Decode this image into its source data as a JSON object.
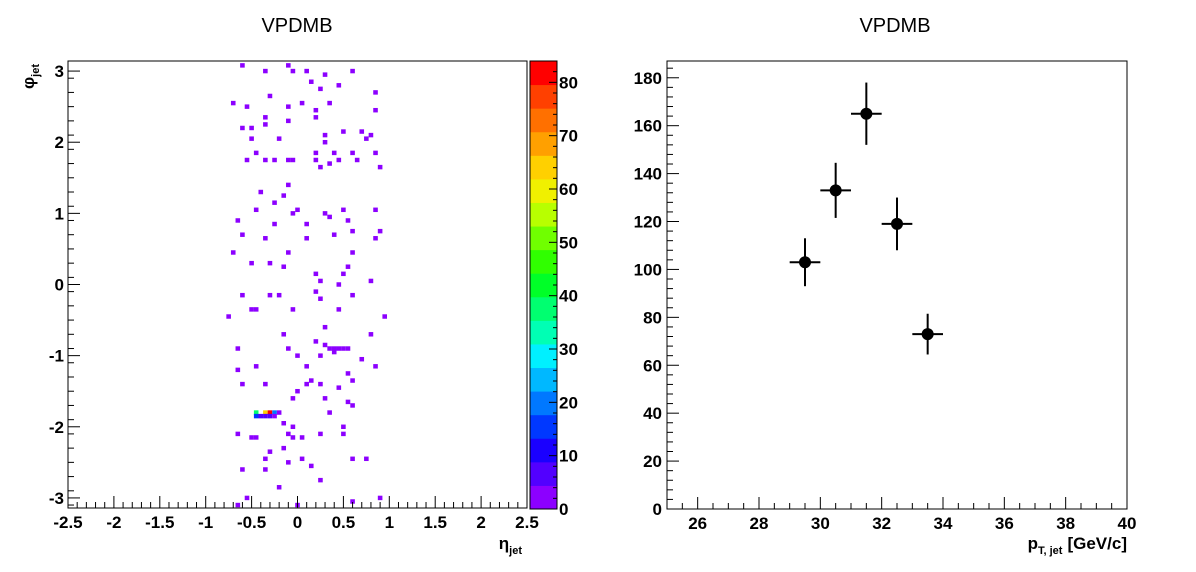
{
  "chart_data": [
    {
      "type": "heatmap",
      "title": "VPDMB",
      "xlabel": "η",
      "xlabel_sub": "jet",
      "ylabel": "φ",
      "ylabel_sub": "jet",
      "xlim": [
        -2.5,
        2.5
      ],
      "ylim": [
        -3.1416,
        3.1416
      ],
      "grid": false,
      "xticks": [
        "-2.5",
        "-2",
        "-1.5",
        "-1",
        "-0.5",
        "0",
        "0.5",
        "1",
        "1.5",
        "2",
        "2.5"
      ],
      "yticks": [
        "-3",
        "-2",
        "-1",
        "0",
        "1",
        "2",
        "3"
      ],
      "colorbar": {
        "range": [
          0,
          84
        ],
        "ticks": [
          "0",
          "10",
          "20",
          "30",
          "40",
          "50",
          "60",
          "70",
          "80"
        ],
        "palette": [
          "#8c00ff",
          "#5200ff",
          "#1a00ff",
          "#0038ff",
          "#0078ff",
          "#00b8ff",
          "#00f0ff",
          "#00ffb4",
          "#00ff70",
          "#00ff28",
          "#30ff00",
          "#70ff00",
          "#b8ff00",
          "#f0f000",
          "#ffd000",
          "#ffa000",
          "#ff7000",
          "#ff4000",
          "#ff0000"
        ]
      },
      "cells": [
        {
          "eta": -0.6,
          "phi": 3.08,
          "z": 1
        },
        {
          "eta": -0.35,
          "phi": 3.0,
          "z": 1
        },
        {
          "eta": -0.1,
          "phi": 3.08,
          "z": 1
        },
        {
          "eta": -0.05,
          "phi": 3.0,
          "z": 1
        },
        {
          "eta": 0.1,
          "phi": 3.0,
          "z": 1
        },
        {
          "eta": 0.3,
          "phi": 2.95,
          "z": 1
        },
        {
          "eta": 0.6,
          "phi": 3.0,
          "z": 1
        },
        {
          "eta": 0.45,
          "phi": 2.8,
          "z": 1
        },
        {
          "eta": 0.15,
          "phi": 2.85,
          "z": 1
        },
        {
          "eta": 0.25,
          "phi": 2.75,
          "z": 1
        },
        {
          "eta": -0.3,
          "phi": 2.65,
          "z": 1
        },
        {
          "eta": 0.85,
          "phi": 2.7,
          "z": 1
        },
        {
          "eta": -0.1,
          "phi": 2.5,
          "z": 1
        },
        {
          "eta": 0.05,
          "phi": 2.55,
          "z": 1
        },
        {
          "eta": 0.35,
          "phi": 2.55,
          "z": 1
        },
        {
          "eta": -0.7,
          "phi": 2.55,
          "z": 1
        },
        {
          "eta": -0.55,
          "phi": 2.5,
          "z": 1
        },
        {
          "eta": 0.2,
          "phi": 2.45,
          "z": 1
        },
        {
          "eta": 0.85,
          "phi": 2.45,
          "z": 1
        },
        {
          "eta": 0.2,
          "phi": 2.35,
          "z": 1
        },
        {
          "eta": -0.35,
          "phi": 2.35,
          "z": 1
        },
        {
          "eta": -0.1,
          "phi": 2.3,
          "z": 1
        },
        {
          "eta": -0.5,
          "phi": 2.2,
          "z": 1
        },
        {
          "eta": -0.35,
          "phi": 2.25,
          "z": 1
        },
        {
          "eta": -0.6,
          "phi": 2.2,
          "z": 1
        },
        {
          "eta": 0.3,
          "phi": 2.1,
          "z": 1
        },
        {
          "eta": 0.5,
          "phi": 2.15,
          "z": 1
        },
        {
          "eta": 0.7,
          "phi": 2.15,
          "z": 1
        },
        {
          "eta": 0.8,
          "phi": 2.1,
          "z": 1
        },
        {
          "eta": -0.5,
          "phi": 2.05,
          "z": 1
        },
        {
          "eta": -0.2,
          "phi": 2.05,
          "z": 1
        },
        {
          "eta": 0.3,
          "phi": 2.0,
          "z": 1
        },
        {
          "eta": 0.75,
          "phi": 2.05,
          "z": 1
        },
        {
          "eta": -0.45,
          "phi": 1.85,
          "z": 1
        },
        {
          "eta": 0.2,
          "phi": 1.85,
          "z": 1
        },
        {
          "eta": 0.4,
          "phi": 1.85,
          "z": 1
        },
        {
          "eta": 0.6,
          "phi": 1.85,
          "z": 1
        },
        {
          "eta": 0.85,
          "phi": 1.85,
          "z": 1
        },
        {
          "eta": -0.35,
          "phi": 1.75,
          "z": 1
        },
        {
          "eta": -0.25,
          "phi": 1.75,
          "z": 1
        },
        {
          "eta": -0.1,
          "phi": 1.75,
          "z": 1
        },
        {
          "eta": -0.05,
          "phi": 1.75,
          "z": 1
        },
        {
          "eta": 0.2,
          "phi": 1.75,
          "z": 1
        },
        {
          "eta": 0.35,
          "phi": 1.7,
          "z": 1
        },
        {
          "eta": 0.45,
          "phi": 1.75,
          "z": 1
        },
        {
          "eta": 0.65,
          "phi": 1.75,
          "z": 1
        },
        {
          "eta": -0.55,
          "phi": 1.75,
          "z": 1
        },
        {
          "eta": 0.25,
          "phi": 1.65,
          "z": 1
        },
        {
          "eta": 0.9,
          "phi": 1.65,
          "z": 1
        },
        {
          "eta": -0.1,
          "phi": 1.4,
          "z": 1
        },
        {
          "eta": -0.15,
          "phi": 1.25,
          "z": 1
        },
        {
          "eta": -0.4,
          "phi": 1.3,
          "z": 1
        },
        {
          "eta": -0.25,
          "phi": 1.15,
          "z": 1
        },
        {
          "eta": 0.0,
          "phi": 1.05,
          "z": 1
        },
        {
          "eta": -0.45,
          "phi": 1.05,
          "z": 1
        },
        {
          "eta": 0.5,
          "phi": 1.05,
          "z": 1
        },
        {
          "eta": 0.85,
          "phi": 1.05,
          "z": 1
        },
        {
          "eta": -0.05,
          "phi": 1.0,
          "z": 1
        },
        {
          "eta": 0.3,
          "phi": 1.0,
          "z": 1
        },
        {
          "eta": 0.35,
          "phi": 0.95,
          "z": 1
        },
        {
          "eta": 0.55,
          "phi": 0.9,
          "z": 1
        },
        {
          "eta": -0.65,
          "phi": 0.9,
          "z": 1
        },
        {
          "eta": 0.1,
          "phi": 0.85,
          "z": 1
        },
        {
          "eta": -0.25,
          "phi": 0.85,
          "z": 1
        },
        {
          "eta": -0.6,
          "phi": 0.7,
          "z": 1
        },
        {
          "eta": 0.4,
          "phi": 0.7,
          "z": 1
        },
        {
          "eta": 0.6,
          "phi": 0.75,
          "z": 1
        },
        {
          "eta": 0.9,
          "phi": 0.75,
          "z": 1
        },
        {
          "eta": 0.85,
          "phi": 0.65,
          "z": 1
        },
        {
          "eta": 0.1,
          "phi": 0.65,
          "z": 1
        },
        {
          "eta": -0.35,
          "phi": 0.65,
          "z": 1
        },
        {
          "eta": -0.7,
          "phi": 0.45,
          "z": 1
        },
        {
          "eta": 0.6,
          "phi": 0.45,
          "z": 1
        },
        {
          "eta": -0.1,
          "phi": 0.45,
          "z": 1
        },
        {
          "eta": -0.5,
          "phi": 0.3,
          "z": 1
        },
        {
          "eta": -0.3,
          "phi": 0.3,
          "z": 1
        },
        {
          "eta": -0.15,
          "phi": 0.25,
          "z": 1
        },
        {
          "eta": 0.55,
          "phi": 0.25,
          "z": 1
        },
        {
          "eta": 0.2,
          "phi": 0.15,
          "z": 1
        },
        {
          "eta": 0.5,
          "phi": 0.15,
          "z": 1
        },
        {
          "eta": 0.8,
          "phi": 0.05,
          "z": 1
        },
        {
          "eta": 0.25,
          "phi": 0.05,
          "z": 1
        },
        {
          "eta": 0.45,
          "phi": 0.0,
          "z": 1
        },
        {
          "eta": -0.6,
          "phi": -0.15,
          "z": 1
        },
        {
          "eta": -0.3,
          "phi": -0.15,
          "z": 1
        },
        {
          "eta": -0.2,
          "phi": -0.15,
          "z": 1
        },
        {
          "eta": 0.2,
          "phi": -0.1,
          "z": 1
        },
        {
          "eta": 0.25,
          "phi": -0.2,
          "z": 1
        },
        {
          "eta": 0.6,
          "phi": -0.15,
          "z": 1
        },
        {
          "eta": -0.5,
          "phi": -0.35,
          "z": 1
        },
        {
          "eta": -0.45,
          "phi": -0.35,
          "z": 1
        },
        {
          "eta": 0.45,
          "phi": -0.35,
          "z": 1
        },
        {
          "eta": -0.05,
          "phi": -0.35,
          "z": 1
        },
        {
          "eta": -0.75,
          "phi": -0.45,
          "z": 1
        },
        {
          "eta": 0.95,
          "phi": -0.45,
          "z": 1
        },
        {
          "eta": 0.3,
          "phi": -0.6,
          "z": 1
        },
        {
          "eta": -0.15,
          "phi": -0.7,
          "z": 1
        },
        {
          "eta": 0.8,
          "phi": -0.7,
          "z": 1
        },
        {
          "eta": 0.2,
          "phi": -0.8,
          "z": 1
        },
        {
          "eta": 0.3,
          "phi": -0.85,
          "z": 1
        },
        {
          "eta": 0.35,
          "phi": -0.9,
          "z": 1
        },
        {
          "eta": 0.4,
          "phi": -0.9,
          "z": 1
        },
        {
          "eta": 0.45,
          "phi": -0.9,
          "z": 1
        },
        {
          "eta": 0.5,
          "phi": -0.9,
          "z": 1
        },
        {
          "eta": 0.55,
          "phi": -0.9,
          "z": 1
        },
        {
          "eta": 0.4,
          "phi": -0.95,
          "z": 1
        },
        {
          "eta": -0.1,
          "phi": -0.9,
          "z": 1
        },
        {
          "eta": -0.65,
          "phi": -0.9,
          "z": 1
        },
        {
          "eta": 0.0,
          "phi": -1.0,
          "z": 1
        },
        {
          "eta": 0.25,
          "phi": -1.0,
          "z": 1
        },
        {
          "eta": 0.7,
          "phi": -1.05,
          "z": 1
        },
        {
          "eta": -0.45,
          "phi": -1.15,
          "z": 1
        },
        {
          "eta": 0.1,
          "phi": -1.15,
          "z": 1
        },
        {
          "eta": 0.85,
          "phi": -1.15,
          "z": 1
        },
        {
          "eta": -0.65,
          "phi": -1.2,
          "z": 1
        },
        {
          "eta": 0.55,
          "phi": -1.25,
          "z": 1
        },
        {
          "eta": -0.6,
          "phi": -1.4,
          "z": 1
        },
        {
          "eta": -0.35,
          "phi": -1.4,
          "z": 1
        },
        {
          "eta": 0.1,
          "phi": -1.4,
          "z": 1
        },
        {
          "eta": 0.15,
          "phi": -1.35,
          "z": 1
        },
        {
          "eta": 0.25,
          "phi": -1.4,
          "z": 1
        },
        {
          "eta": 0.6,
          "phi": -1.35,
          "z": 1
        },
        {
          "eta": 0.45,
          "phi": -1.45,
          "z": 1
        },
        {
          "eta": 0.0,
          "phi": -1.5,
          "z": 1
        },
        {
          "eta": -0.05,
          "phi": -1.6,
          "z": 1
        },
        {
          "eta": 0.3,
          "phi": -1.6,
          "z": 1
        },
        {
          "eta": 0.55,
          "phi": -1.65,
          "z": 1
        },
        {
          "eta": -0.45,
          "phi": -1.8,
          "z": 38
        },
        {
          "eta": -0.35,
          "phi": -1.8,
          "z": 62
        },
        {
          "eta": -0.3,
          "phi": -1.8,
          "z": 84
        },
        {
          "eta": -0.25,
          "phi": -1.8,
          "z": 20
        },
        {
          "eta": -0.2,
          "phi": -1.8,
          "z": 3
        },
        {
          "eta": -0.45,
          "phi": -1.85,
          "z": 14
        },
        {
          "eta": -0.4,
          "phi": -1.85,
          "z": 6
        },
        {
          "eta": -0.35,
          "phi": -1.85,
          "z": 6
        },
        {
          "eta": -0.3,
          "phi": -1.85,
          "z": 8
        },
        {
          "eta": -0.25,
          "phi": -1.85,
          "z": 4
        },
        {
          "eta": 0.35,
          "phi": -1.8,
          "z": 1
        },
        {
          "eta": 0.6,
          "phi": -1.7,
          "z": 1
        },
        {
          "eta": -0.15,
          "phi": -1.95,
          "z": 1
        },
        {
          "eta": -0.05,
          "phi": -2.0,
          "z": 1
        },
        {
          "eta": 0.5,
          "phi": -2.0,
          "z": 1
        },
        {
          "eta": -0.65,
          "phi": -2.1,
          "z": 1
        },
        {
          "eta": -0.45,
          "phi": -2.15,
          "z": 1
        },
        {
          "eta": -0.5,
          "phi": -2.15,
          "z": 1
        },
        {
          "eta": -0.1,
          "phi": -2.1,
          "z": 1
        },
        {
          "eta": -0.05,
          "phi": -2.15,
          "z": 1
        },
        {
          "eta": 0.05,
          "phi": -2.15,
          "z": 1
        },
        {
          "eta": 0.25,
          "phi": -2.1,
          "z": 1
        },
        {
          "eta": 0.5,
          "phi": -2.1,
          "z": 1
        },
        {
          "eta": -0.3,
          "phi": -2.35,
          "z": 1
        },
        {
          "eta": -0.15,
          "phi": -2.3,
          "z": 1
        },
        {
          "eta": 0.75,
          "phi": -2.45,
          "z": 1
        },
        {
          "eta": 0.6,
          "phi": -2.45,
          "z": 1
        },
        {
          "eta": -0.35,
          "phi": -2.45,
          "z": 1
        },
        {
          "eta": 0.05,
          "phi": -2.45,
          "z": 1
        },
        {
          "eta": -0.1,
          "phi": -2.5,
          "z": 1
        },
        {
          "eta": 0.15,
          "phi": -2.55,
          "z": 1
        },
        {
          "eta": -0.6,
          "phi": -2.6,
          "z": 1
        },
        {
          "eta": -0.35,
          "phi": -2.6,
          "z": 1
        },
        {
          "eta": 0.25,
          "phi": -2.75,
          "z": 1
        },
        {
          "eta": -0.2,
          "phi": -2.85,
          "z": 1
        },
        {
          "eta": -0.55,
          "phi": -3.0,
          "z": 1
        },
        {
          "eta": 0.6,
          "phi": -3.05,
          "z": 1
        },
        {
          "eta": 0.9,
          "phi": -3.0,
          "z": 1
        },
        {
          "eta": -0.65,
          "phi": -3.1,
          "z": 1
        },
        {
          "eta": 0.0,
          "phi": -3.1,
          "z": 1
        }
      ]
    },
    {
      "type": "scatter",
      "title": "VPDMB",
      "xlabel": "p",
      "xlabel_sub": "T, jet",
      "xlabel_unit": "[GeV/c]",
      "ylabel": "",
      "xlim": [
        25,
        40
      ],
      "ylim": [
        0,
        187
      ],
      "grid": false,
      "xticks": [
        "26",
        "28",
        "30",
        "32",
        "34",
        "36",
        "38",
        "40"
      ],
      "yticks": [
        "0",
        "20",
        "40",
        "60",
        "80",
        "100",
        "120",
        "140",
        "160",
        "180"
      ],
      "points": [
        {
          "x": 29.5,
          "y": 103,
          "xerr": 0.5,
          "yerr": 10
        },
        {
          "x": 30.5,
          "y": 133,
          "xerr": 0.5,
          "yerr": 11.5
        },
        {
          "x": 31.5,
          "y": 165,
          "xerr": 0.5,
          "yerr": 13
        },
        {
          "x": 32.5,
          "y": 119,
          "xerr": 0.5,
          "yerr": 11
        },
        {
          "x": 33.5,
          "y": 73,
          "xerr": 0.5,
          "yerr": 8.5
        }
      ]
    }
  ]
}
